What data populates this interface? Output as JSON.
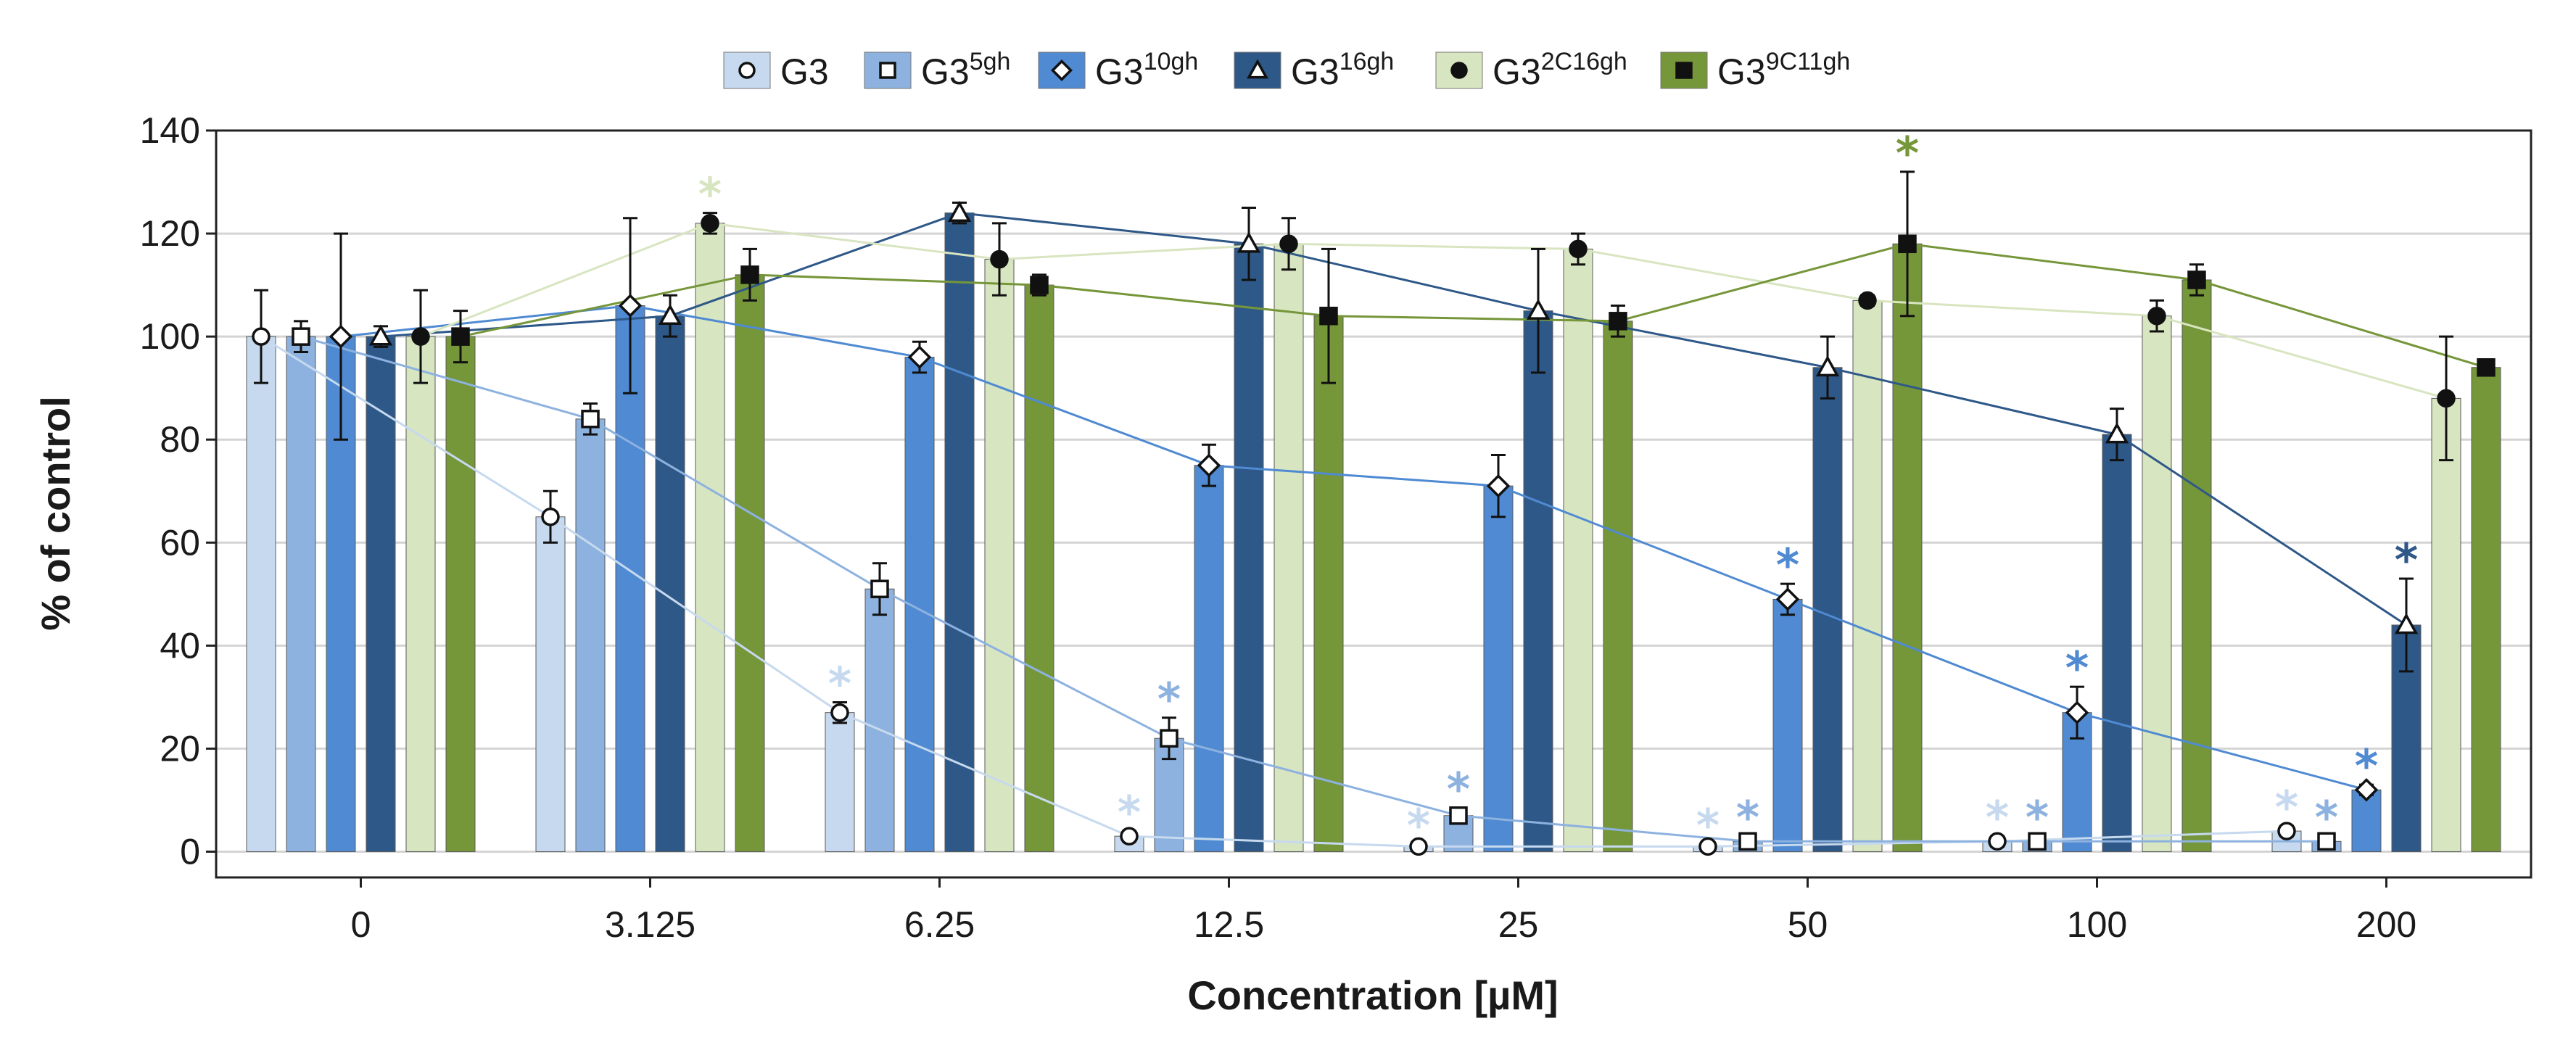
{
  "chart_data": {
    "type": "bar",
    "title": "",
    "xlabel": "Concentration [µM]",
    "ylabel": "% of control",
    "ylim": [
      -5,
      140
    ],
    "yticks": [
      0,
      20,
      40,
      60,
      80,
      100,
      120,
      140
    ],
    "grid": true,
    "legend_position": "top",
    "categories": [
      "0",
      "3.125",
      "6.25",
      "12.5",
      "25",
      "50",
      "100",
      "200"
    ],
    "significance_mark": "*",
    "series": [
      {
        "name": "G3",
        "base": "G3",
        "sup": "",
        "marker": "circle-open",
        "color": "#c6d9ee",
        "values": [
          100,
          65,
          27,
          3,
          1,
          1,
          2,
          4
        ],
        "errors": [
          9,
          5,
          2,
          1,
          0.5,
          0.5,
          1,
          1
        ],
        "significant": [
          false,
          false,
          true,
          true,
          true,
          true,
          true,
          true
        ]
      },
      {
        "name": "G3 5gh",
        "base": "G3",
        "sup": "5gh",
        "marker": "square-open",
        "color": "#8db2df",
        "values": [
          100,
          84,
          51,
          22,
          7,
          2,
          2,
          2
        ],
        "errors": [
          3,
          3,
          5,
          4,
          1.5,
          1,
          1,
          1
        ],
        "significant": [
          false,
          false,
          false,
          true,
          true,
          true,
          true,
          true
        ]
      },
      {
        "name": "G3 10gh",
        "base": "G3",
        "sup": "10gh",
        "marker": "diamond-open",
        "color": "#4f8ad2",
        "values": [
          100,
          106,
          96,
          75,
          71,
          49,
          27,
          12
        ],
        "errors": [
          20,
          17,
          3,
          4,
          6,
          3,
          5,
          1
        ],
        "significant": [
          false,
          false,
          false,
          false,
          false,
          true,
          true,
          true
        ]
      },
      {
        "name": "G3 16gh",
        "base": "G3",
        "sup": "16gh",
        "marker": "triangle-open",
        "color": "#2e5888",
        "values": [
          100,
          104,
          124,
          118,
          105,
          94,
          81,
          44
        ],
        "errors": [
          2,
          4,
          2,
          7,
          12,
          6,
          5,
          9
        ],
        "significant": [
          false,
          false,
          false,
          false,
          false,
          false,
          false,
          true
        ]
      },
      {
        "name": "G3 2C16gh",
        "base": "G3",
        "sup": "2C16gh",
        "marker": "circle-filled",
        "color": "#d8e5c1",
        "values": [
          100,
          122,
          115,
          118,
          117,
          107,
          104,
          88
        ],
        "errors": [
          9,
          2,
          7,
          5,
          3,
          1,
          3,
          12
        ],
        "significant": [
          false,
          true,
          false,
          false,
          false,
          false,
          false,
          false
        ]
      },
      {
        "name": "G3 9C11gh",
        "base": "G3",
        "sup": "9C11gh",
        "marker": "square-filled",
        "color": "#76963a",
        "values": [
          100,
          112,
          110,
          104,
          103,
          118,
          111,
          94
        ],
        "errors": [
          5,
          5,
          2,
          13,
          3,
          14,
          3,
          1
        ],
        "significant": [
          false,
          false,
          false,
          false,
          false,
          true,
          false,
          false
        ]
      }
    ]
  }
}
